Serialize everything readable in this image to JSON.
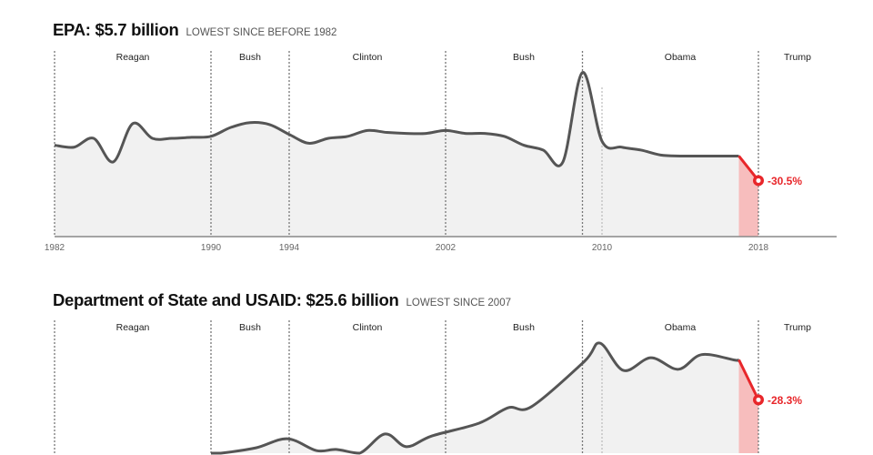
{
  "chart_data": [
    {
      "type": "line",
      "title": "EPA: $5.7 billion",
      "subtitle": "LOWEST SINCE BEFORE 1982",
      "unit": "billion USD",
      "x_ticks": [
        1982,
        1990,
        1994,
        2002,
        2010,
        2018
      ],
      "xlim": [
        1982,
        2022
      ],
      "presidents": [
        {
          "name": "Reagan",
          "start": 1982,
          "end": 1990
        },
        {
          "name": "Bush",
          "start": 1990,
          "end": 1994
        },
        {
          "name": "Clinton",
          "start": 1994,
          "end": 2002
        },
        {
          "name": "Bush",
          "start": 2002,
          "end": 2010
        },
        {
          "name": "Obama",
          "start": 2010,
          "end": 2018
        },
        {
          "name": "Trump",
          "start": 2018,
          "end": 2022
        }
      ],
      "points": [
        [
          1982,
          9.3
        ],
        [
          1983,
          9.1
        ],
        [
          1984,
          10.0
        ],
        [
          1985,
          7.6
        ],
        [
          1986,
          11.5
        ],
        [
          1987,
          10.0
        ],
        [
          1988,
          10.0
        ],
        [
          1989,
          10.1
        ],
        [
          1990,
          10.2
        ],
        [
          1991,
          11.1
        ],
        [
          1992,
          11.6
        ],
        [
          1993,
          11.4
        ],
        [
          1994,
          10.4
        ],
        [
          1995,
          9.5
        ],
        [
          1996,
          10.0
        ],
        [
          1997,
          10.2
        ],
        [
          1998,
          10.8
        ],
        [
          1999,
          10.6
        ],
        [
          2000,
          10.5
        ],
        [
          2001,
          10.5
        ],
        [
          2002,
          10.8
        ],
        [
          2003,
          10.5
        ],
        [
          2004,
          10.5
        ],
        [
          2005,
          10.2
        ],
        [
          2006,
          9.3
        ],
        [
          2007,
          8.8
        ],
        [
          2008,
          7.6
        ],
        [
          2009,
          16.7
        ],
        [
          2010,
          9.7
        ],
        [
          2011,
          9.1
        ],
        [
          2012,
          8.8
        ],
        [
          2013,
          8.3
        ],
        [
          2014,
          8.2
        ],
        [
          2015,
          8.2
        ],
        [
          2016,
          8.2
        ],
        [
          2017,
          8.2
        ]
      ],
      "proposed": [
        2018,
        5.7
      ],
      "change_label": "-30.5%"
    },
    {
      "type": "line",
      "title": "Department of State and USAID: $25.6 billion",
      "subtitle": "LOWEST SINCE 2007",
      "unit": "billion USD",
      "xlim": [
        1982,
        2022
      ],
      "presidents": [
        {
          "name": "Reagan",
          "start": 1982,
          "end": 1990
        },
        {
          "name": "Bush",
          "start": 1990,
          "end": 1994
        },
        {
          "name": "Clinton",
          "start": 1994,
          "end": 2002
        },
        {
          "name": "Bush",
          "start": 2002,
          "end": 2010
        },
        {
          "name": "Obama",
          "start": 2010,
          "end": 2018
        },
        {
          "name": "Trump",
          "start": 2018,
          "end": 2022
        }
      ],
      "points": [
        [
          1990,
          10.0
        ],
        [
          1990.5,
          11.7
        ],
        [
          1992.3,
          13.5
        ],
        [
          1993.9,
          15.8
        ],
        [
          1995.4,
          12.8
        ],
        [
          1996.4,
          13.1
        ],
        [
          1997.6,
          11.9
        ],
        [
          1998.9,
          17.0
        ],
        [
          2000.0,
          13.8
        ],
        [
          2001.3,
          16.5
        ],
        [
          2003.7,
          19.7
        ],
        [
          2005.2,
          23.6
        ],
        [
          2006.4,
          23.9
        ],
        [
          2009.1,
          35.3
        ],
        [
          2009.9,
          39.9
        ],
        [
          2011.1,
          33.0
        ],
        [
          2012.5,
          36.2
        ],
        [
          2013.9,
          33.3
        ],
        [
          2015.1,
          37.0
        ],
        [
          2016.8,
          35.6
        ],
        [
          2017,
          35.7
        ]
      ],
      "proposed": [
        2018,
        25.6
      ],
      "change_label": "-28.3%"
    }
  ],
  "colors": {
    "line": "#555555",
    "fill": "#f1f1f1",
    "accent": "#e8262a",
    "accent_fill": "#f7bdbd"
  }
}
